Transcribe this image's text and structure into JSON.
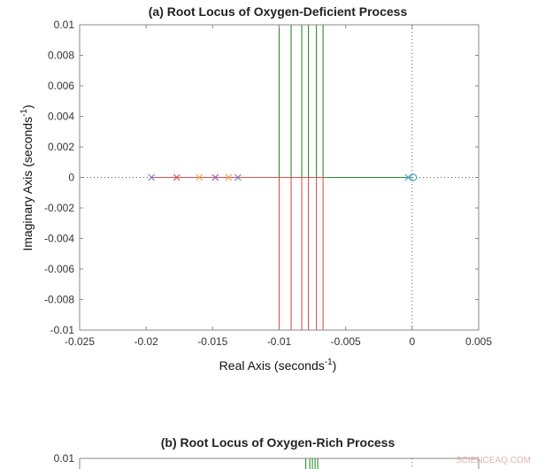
{
  "chart_data": [
    {
      "type": "line",
      "title": "(a) Root Locus of Oxygen-Deficient Process",
      "xlabel": "Real Axis (seconds",
      "xlabel_sup": "-1",
      "xlabel_close": ")",
      "ylabel": "Imaginary Axis (seconds",
      "ylabel_sup": "-1",
      "ylabel_close": ")",
      "xlim": [
        -0.025,
        0.005
      ],
      "ylim": [
        -0.01,
        0.01
      ],
      "xticks": [
        -0.025,
        -0.02,
        -0.015,
        -0.01,
        -0.005,
        0,
        0.005
      ],
      "xtick_labels": [
        "-0.025",
        "-0.02",
        "-0.015",
        "-0.01",
        "-0.005",
        "0",
        "0.005"
      ],
      "yticks": [
        0.01,
        0.008,
        0.006,
        0.004,
        0.002,
        0,
        -0.002,
        -0.004,
        -0.006,
        -0.008,
        -0.01
      ],
      "ytick_labels": [
        "0.01",
        "0.008",
        "0.006",
        "0.004",
        "0.002",
        "0",
        "-0.002",
        "-0.004",
        "-0.006",
        "-0.008",
        "-0.01"
      ],
      "grid": false,
      "series": [
        {
          "color": "#d9534f",
          "segments": [
            [
              [
                -0.0196,
                0
              ],
              [
                -0.0066,
                0
              ]
            ],
            [
              [
                -0.01,
                0
              ],
              [
                -0.01,
                -0.01
              ]
            ],
            [
              [
                -0.0091,
                0
              ],
              [
                -0.0091,
                -0.01
              ]
            ],
            [
              [
                -0.0083,
                0
              ],
              [
                -0.0083,
                -0.01
              ]
            ],
            [
              [
                -0.0078,
                0
              ],
              [
                -0.0078,
                -0.01
              ]
            ],
            [
              [
                -0.0072,
                0
              ],
              [
                -0.0072,
                -0.01
              ]
            ],
            [
              [
                -0.0067,
                0
              ],
              [
                -0.0067,
                -0.01
              ]
            ]
          ]
        },
        {
          "color": "#2e8b2e",
          "segments": [
            [
              [
                -0.0066,
                0
              ],
              [
                -0.0001,
                0
              ]
            ],
            [
              [
                -0.01,
                0
              ],
              [
                -0.01,
                0.01
              ]
            ],
            [
              [
                -0.0091,
                0
              ],
              [
                -0.0091,
                0.01
              ]
            ],
            [
              [
                -0.0083,
                0
              ],
              [
                -0.0083,
                0.01
              ]
            ],
            [
              [
                -0.0078,
                0
              ],
              [
                -0.0078,
                0.01
              ]
            ],
            [
              [
                -0.0072,
                0
              ],
              [
                -0.0072,
                0.01
              ]
            ],
            [
              [
                -0.0067,
                0
              ],
              [
                -0.0067,
                0.01
              ]
            ]
          ]
        }
      ],
      "poles": [
        {
          "x": -0.0196,
          "y": 0,
          "color": "#7b7bd0"
        },
        {
          "x": -0.0177,
          "y": 0,
          "color": "#d9534f"
        },
        {
          "x": -0.016,
          "y": 0,
          "color": "#f0a050"
        },
        {
          "x": -0.0148,
          "y": 0,
          "color": "#9b59b6"
        },
        {
          "x": -0.0138,
          "y": 0,
          "color": "#f0a050"
        },
        {
          "x": -0.0131,
          "y": 0,
          "color": "#7b7bd0"
        },
        {
          "x": -0.0003,
          "y": 0,
          "color": "#4aa8c8"
        }
      ],
      "zeros": [
        {
          "x": 0.0001,
          "y": 0,
          "color": "#4aa8c8"
        }
      ]
    },
    {
      "type": "line",
      "title": "(b) Root Locus of Oxygen-Rich Process",
      "ytick_visible": [
        "0.01"
      ],
      "ylim_top": 0.01,
      "series_partial": [
        {
          "color": "#2e8b2e",
          "x_values": [
            -0.008,
            -0.0077,
            -0.0075,
            -0.0073,
            -0.0071
          ]
        }
      ]
    }
  ],
  "watermark": "SCIENCEAQ.COM"
}
